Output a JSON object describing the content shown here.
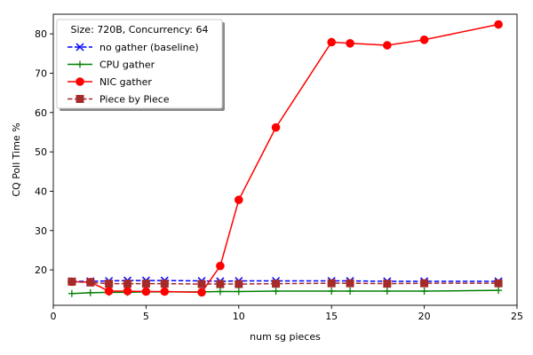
{
  "chart_data": {
    "type": "line",
    "xlabel": "num sg pieces",
    "ylabel": "CQ Poll Time %",
    "xlim": [
      0,
      25
    ],
    "ylim": [
      11,
      85
    ],
    "xticks": [
      0,
      5,
      10,
      15,
      20,
      25
    ],
    "yticks": [
      20,
      30,
      40,
      50,
      60,
      70,
      80
    ],
    "grid": false,
    "legend": {
      "title": "Size: 720B, Concurrency: 64",
      "placement": "top-left"
    },
    "x": [
      1,
      2,
      3,
      4,
      5,
      6,
      8,
      9,
      10,
      12,
      15,
      16,
      18,
      20,
      24
    ],
    "series": [
      {
        "name": "no gather (baseline)",
        "color": "#0000ff",
        "marker": "x",
        "linestyle": "dashed",
        "values": [
          17.1,
          17.1,
          17.2,
          17.3,
          17.3,
          17.3,
          17.2,
          17.1,
          17.2,
          17.2,
          17.2,
          17.2,
          17.1,
          17.1,
          17.1
        ]
      },
      {
        "name": "CPU gather",
        "color": "#008000",
        "marker": "+",
        "linestyle": "solid",
        "values": [
          14.0,
          14.2,
          14.3,
          14.3,
          14.4,
          14.4,
          14.4,
          14.5,
          14.5,
          14.6,
          14.6,
          14.6,
          14.6,
          14.6,
          14.8
        ]
      },
      {
        "name": "NIC gather",
        "color": "#ff0000",
        "marker": "circle",
        "linestyle": "solid",
        "values": [
          17.0,
          16.9,
          14.6,
          14.6,
          14.5,
          14.5,
          14.3,
          21.0,
          37.8,
          56.2,
          77.9,
          77.6,
          77.1,
          78.5,
          82.4
        ]
      },
      {
        "name": "Piece by Piece",
        "color": "#a52a2a",
        "marker": "square",
        "linestyle": "dashed",
        "values": [
          17.0,
          16.8,
          16.5,
          16.5,
          16.5,
          16.5,
          16.4,
          16.4,
          16.4,
          16.5,
          16.6,
          16.6,
          16.5,
          16.6,
          16.6
        ]
      }
    ]
  }
}
